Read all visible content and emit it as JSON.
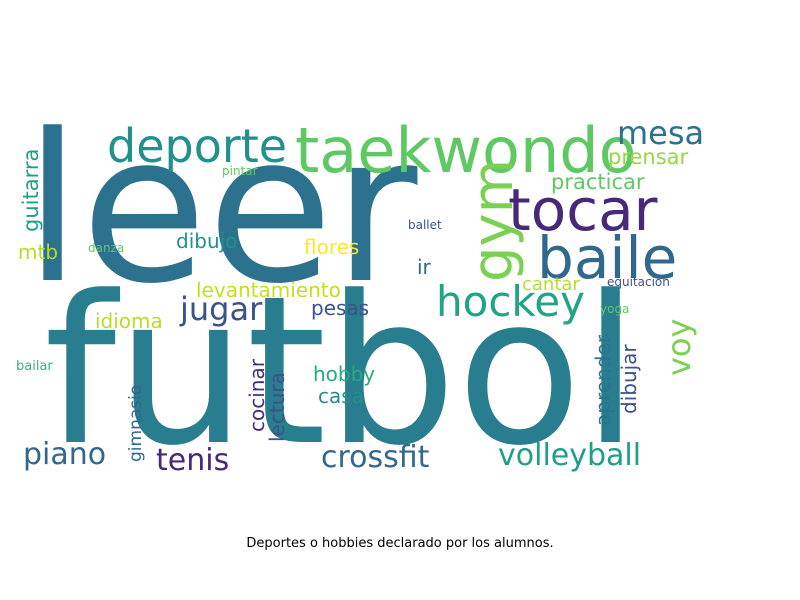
{
  "caption": "Deportes o hobbies declarado por los alumnos.",
  "words": [
    {
      "text": "leer",
      "color": "#2c728e"
    },
    {
      "text": "futbol",
      "color": "#287d8e"
    },
    {
      "text": "taekwondo",
      "color": "#5ec962"
    },
    {
      "text": "deporte",
      "color": "#21918c"
    },
    {
      "text": "tocar",
      "color": "#482878"
    },
    {
      "text": "baile",
      "color": "#31688e"
    },
    {
      "text": "mesa",
      "color": "#2c728e"
    },
    {
      "text": "gym",
      "color": "#7ad151"
    },
    {
      "text": "hockey",
      "color": "#20a486"
    },
    {
      "text": "prensar",
      "color": "#95d840"
    },
    {
      "text": "practicar",
      "color": "#5ec962"
    },
    {
      "text": "guitarra",
      "color": "#1f9e89"
    },
    {
      "text": "pintar",
      "color": "#5ec962"
    },
    {
      "text": "dibujo",
      "color": "#21918c"
    },
    {
      "text": "flores",
      "color": "#fde725"
    },
    {
      "text": "ballet",
      "color": "#3b528b"
    },
    {
      "text": "mtb",
      "color": "#b5de2b"
    },
    {
      "text": "danza",
      "color": "#5ec962"
    },
    {
      "text": "ir",
      "color": "#31688e"
    },
    {
      "text": "levantamiento",
      "color": "#c2df23"
    },
    {
      "text": "cantar",
      "color": "#b5de2b"
    },
    {
      "text": "equitacion",
      "color": "#3b528b"
    },
    {
      "text": "jugar",
      "color": "#3b528b"
    },
    {
      "text": "pesas",
      "color": "#3b528b"
    },
    {
      "text": "idioma",
      "color": "#b5de2b"
    },
    {
      "text": "yoga",
      "color": "#5ec962"
    },
    {
      "text": "voy",
      "color": "#7ad151"
    },
    {
      "text": "bailar",
      "color": "#35b779"
    },
    {
      "text": "aprender",
      "color": "#2c728e"
    },
    {
      "text": "dibujar",
      "color": "#3b528b"
    },
    {
      "text": "cocinar",
      "color": "#472d7b"
    },
    {
      "text": "lectura",
      "color": "#3b528b"
    },
    {
      "text": "hobby",
      "color": "#25ab82"
    },
    {
      "text": "casa",
      "color": "#21918c"
    },
    {
      "text": "gimnasio",
      "color": "#31688e"
    },
    {
      "text": "piano",
      "color": "#31688e"
    },
    {
      "text": "tenis",
      "color": "#482878"
    },
    {
      "text": "crossfit",
      "color": "#31688e"
    },
    {
      "text": "volleyball",
      "color": "#1f9e89"
    }
  ]
}
